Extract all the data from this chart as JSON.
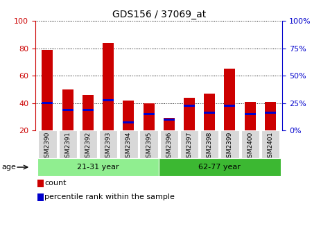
{
  "title": "GDS156 / 37069_at",
  "samples": [
    "GSM2390",
    "GSM2391",
    "GSM2392",
    "GSM2393",
    "GSM2394",
    "GSM2395",
    "GSM2396",
    "GSM2397",
    "GSM2398",
    "GSM2399",
    "GSM2400",
    "GSM2401"
  ],
  "count_values": [
    79,
    50,
    46,
    84,
    42,
    40,
    29,
    44,
    47,
    65,
    41,
    41
  ],
  "percentile_values": [
    40,
    35,
    35,
    42,
    26,
    32,
    28,
    38,
    33,
    38,
    32,
    33
  ],
  "bar_bottom": 20,
  "ylim": [
    20,
    100
  ],
  "yticks": [
    20,
    40,
    60,
    80,
    100
  ],
  "y2ticks": [
    0,
    25,
    50,
    75,
    100
  ],
  "groups": [
    {
      "label": "21-31 year",
      "start": 0,
      "end": 6,
      "color": "#90EE90"
    },
    {
      "label": "62-77 year",
      "start": 6,
      "end": 12,
      "color": "#3CB832"
    }
  ],
  "age_label": "age",
  "bar_color_count": "#CC0000",
  "bar_color_pct": "#0000CC",
  "bar_width": 0.55,
  "legend_count": "count",
  "legend_pct": "percentile rank within the sample",
  "tick_color_left": "#CC0000",
  "tick_color_right": "#0000CC",
  "bg_color": "#FFFFFF",
  "xtick_bg": "#D8D8D8"
}
